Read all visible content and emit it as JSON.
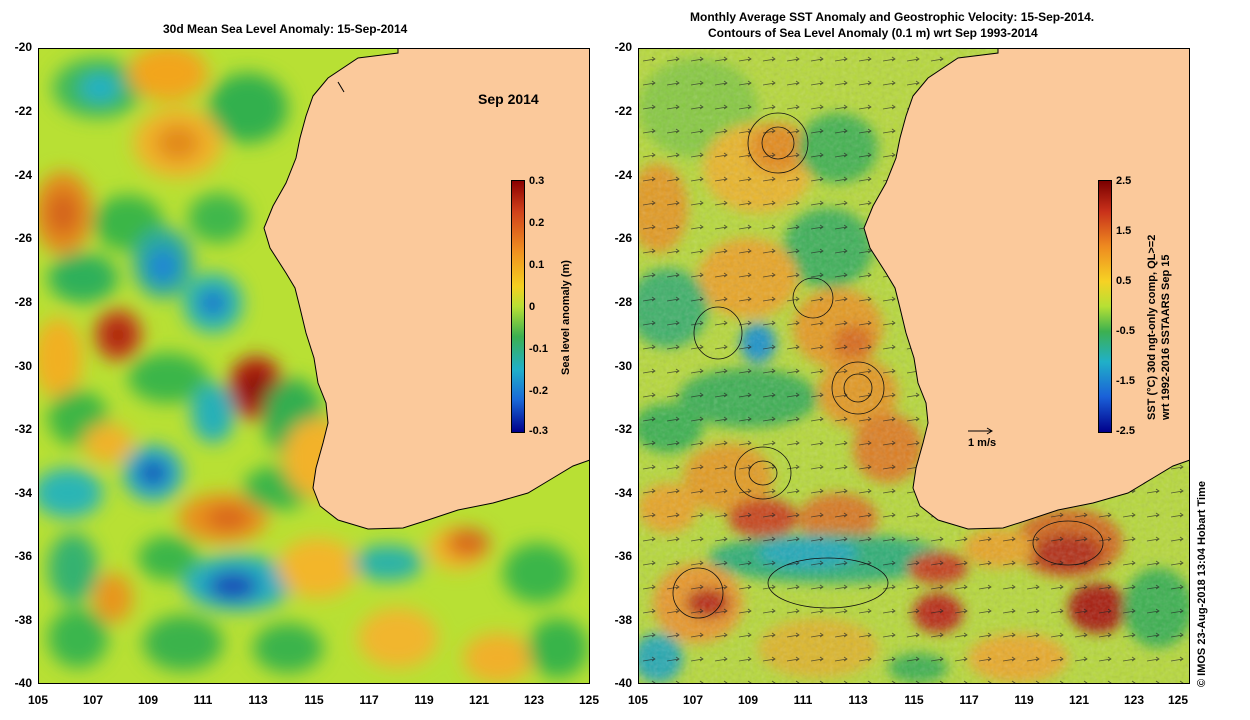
{
  "left_panel": {
    "title": "30d Mean Sea Level Anomaly: 15-Sep-2014",
    "inset_label": "Sep 2014",
    "colorbar": {
      "label": "Sea level anomaly (m)",
      "ticks": [
        "0.3",
        "0.2",
        "0.1",
        "0",
        "-0.1",
        "-0.2",
        "-0.3"
      ]
    }
  },
  "right_panel": {
    "title_line1": "Monthly Average SST Anomaly  and Geostrophic Velocity: 15-Sep-2014.",
    "title_line2": "Contours of Sea Level Anomaly (0.1 m) wrt Sep 1993-2014",
    "scale_label": "1 m/s",
    "colorbar": {
      "label_line1": "SST (°C) 30d ngt-only comp, QL>=2",
      "label_line2": "wrt 1992-2016 SSTAARS Sep 15",
      "ticks": [
        "2.5",
        "1.5",
        "0.5",
        "-0.5",
        "-1.5",
        "-2.5"
      ]
    }
  },
  "credit": "© IMOS 23-Aug-2018 13:04 Hobart Time",
  "axes": {
    "y_ticks": [
      "-20",
      "-22",
      "-24",
      "-26",
      "-28",
      "-30",
      "-32",
      "-34",
      "-36",
      "-38",
      "-40"
    ],
    "x_ticks": [
      "105",
      "107",
      "109",
      "111",
      "113",
      "115",
      "117",
      "119",
      "121",
      "123",
      "125"
    ]
  },
  "colors": {
    "land": "#fbc99b",
    "background_anomaly": "#b8e034"
  }
}
